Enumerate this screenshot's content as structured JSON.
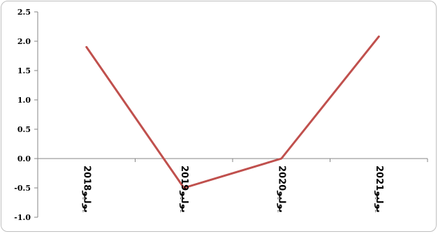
{
  "chart_data": {
    "type": "line",
    "categories": [
      "يوليو2018",
      "يوليو2019",
      "يوليو2020",
      "يوليو2021"
    ],
    "series": [
      {
        "values": [
          1.9,
          -0.5,
          0.0,
          2.08
        ],
        "color": "#c0504d"
      }
    ],
    "ylim": [
      -1.0,
      2.5
    ],
    "yticks": [
      "2.5",
      "2.0",
      "1.5",
      "1.0",
      "0.5",
      "0.0",
      "-0.5",
      "-1.0"
    ],
    "grid": false,
    "legend": "none",
    "title": "",
    "xlabel": "",
    "ylabel": ""
  }
}
